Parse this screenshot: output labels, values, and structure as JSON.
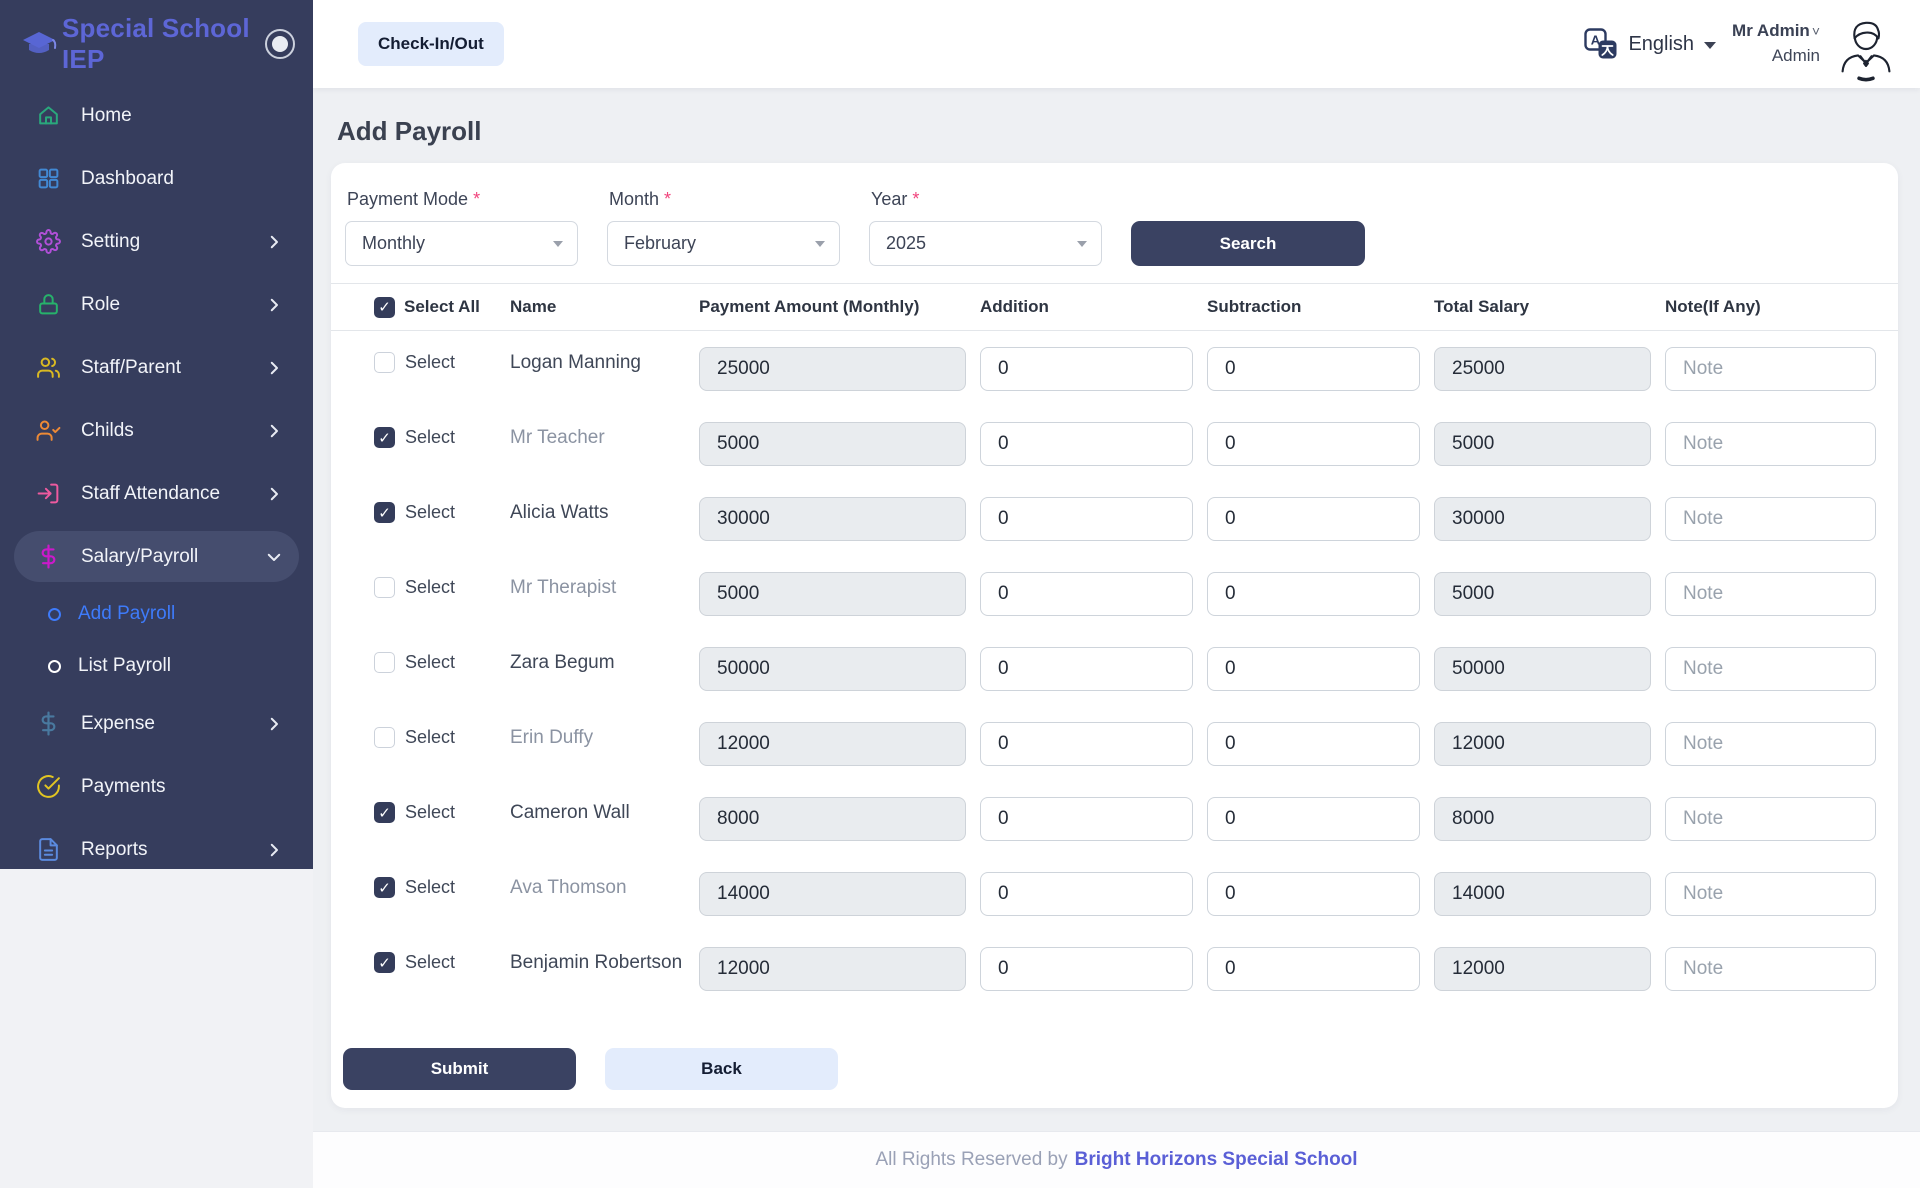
{
  "app": {
    "brand": "Special School IEP"
  },
  "header": {
    "checkin_button": "Check-In/Out",
    "language": "English",
    "user_name": "Mr Admin",
    "user_role": "Admin"
  },
  "sidebar": {
    "items": [
      {
        "label": "Home",
        "icon": "home-icon",
        "color": "#2aa87c"
      },
      {
        "label": "Dashboard",
        "icon": "dashboard-icon",
        "color": "#4289d4"
      },
      {
        "label": "Setting",
        "icon": "gear-icon",
        "color": "#b14fd8",
        "chevron": "right"
      },
      {
        "label": "Role",
        "icon": "lock-icon",
        "color": "#27b26b",
        "chevron": "right"
      },
      {
        "label": "Staff/Parent",
        "icon": "staff-parent-icon",
        "color": "#d9b922",
        "chevron": "right"
      },
      {
        "label": "Childs",
        "icon": "child-icon",
        "color": "#ee8a35",
        "chevron": "right"
      },
      {
        "label": "Staff Attendance",
        "icon": "staff-attendance-icon",
        "color": "#ee5a9f",
        "chevron": "right"
      },
      {
        "label": "Salary/Payroll",
        "icon": "salary-icon",
        "color": "#cb19cb",
        "chevron": "down",
        "active": true,
        "subitems": [
          {
            "label": "Add Payroll",
            "active": true
          },
          {
            "label": "List Payroll",
            "active": false
          }
        ]
      },
      {
        "label": "Expense",
        "icon": "expense-icon",
        "color": "#49799f",
        "chevron": "right"
      },
      {
        "label": "Payments",
        "icon": "payments-icon",
        "color": "#e2c522"
      },
      {
        "label": "Reports",
        "icon": "reports-icon",
        "color": "#5b8ade",
        "chevron": "right"
      }
    ]
  },
  "page": {
    "title": "Add Payroll"
  },
  "filters": {
    "required_mark": "*",
    "payment_mode": {
      "label": "Payment Mode",
      "value": "Monthly"
    },
    "month": {
      "label": "Month",
      "value": "February"
    },
    "year": {
      "label": "Year",
      "value": "2025"
    },
    "search_label": "Search"
  },
  "table": {
    "headers": [
      "Select All",
      "Name",
      "Payment Amount (Monthly)",
      "Addition",
      "Subtraction",
      "Total Salary",
      "Note(If Any)"
    ],
    "select_label": "Select",
    "note_placeholder": "Note",
    "select_all_checked": true,
    "rows": [
      {
        "name": "Logan Manning",
        "selected": false,
        "muted": false,
        "amount": "25000",
        "addition": "0",
        "subtraction": "0",
        "total": "25000",
        "note": ""
      },
      {
        "name": "Mr Teacher",
        "selected": true,
        "muted": true,
        "amount": "5000",
        "addition": "0",
        "subtraction": "0",
        "total": "5000",
        "note": ""
      },
      {
        "name": "Alicia Watts",
        "selected": true,
        "muted": false,
        "amount": "30000",
        "addition": "0",
        "subtraction": "0",
        "total": "30000",
        "note": ""
      },
      {
        "name": "Mr Therapist",
        "selected": false,
        "muted": true,
        "amount": "5000",
        "addition": "0",
        "subtraction": "0",
        "total": "5000",
        "note": ""
      },
      {
        "name": "Zara Begum",
        "selected": false,
        "muted": false,
        "amount": "50000",
        "addition": "0",
        "subtraction": "0",
        "total": "50000",
        "note": ""
      },
      {
        "name": "Erin Duffy",
        "selected": false,
        "muted": true,
        "amount": "12000",
        "addition": "0",
        "subtraction": "0",
        "total": "12000",
        "note": ""
      },
      {
        "name": "Cameron Wall",
        "selected": true,
        "muted": false,
        "amount": "8000",
        "addition": "0",
        "subtraction": "0",
        "total": "8000",
        "note": ""
      },
      {
        "name": "Ava Thomson",
        "selected": true,
        "muted": true,
        "amount": "14000",
        "addition": "0",
        "subtraction": "0",
        "total": "14000",
        "note": ""
      },
      {
        "name": "Benjamin Robertson",
        "selected": true,
        "muted": false,
        "amount": "12000",
        "addition": "0",
        "subtraction": "0",
        "total": "12000",
        "note": ""
      }
    ]
  },
  "actions": {
    "submit": "Submit",
    "back": "Back"
  },
  "footer": {
    "prefix": "All Rights Reserved by",
    "link": "Bright Horizons Special School"
  },
  "colors": {
    "accent": "#5d66d6",
    "primary_button": "#3a4262",
    "active_link": "#3e7bfa",
    "footer_link": "#5a5fd6",
    "sidebar_bg": "#363d5d"
  }
}
